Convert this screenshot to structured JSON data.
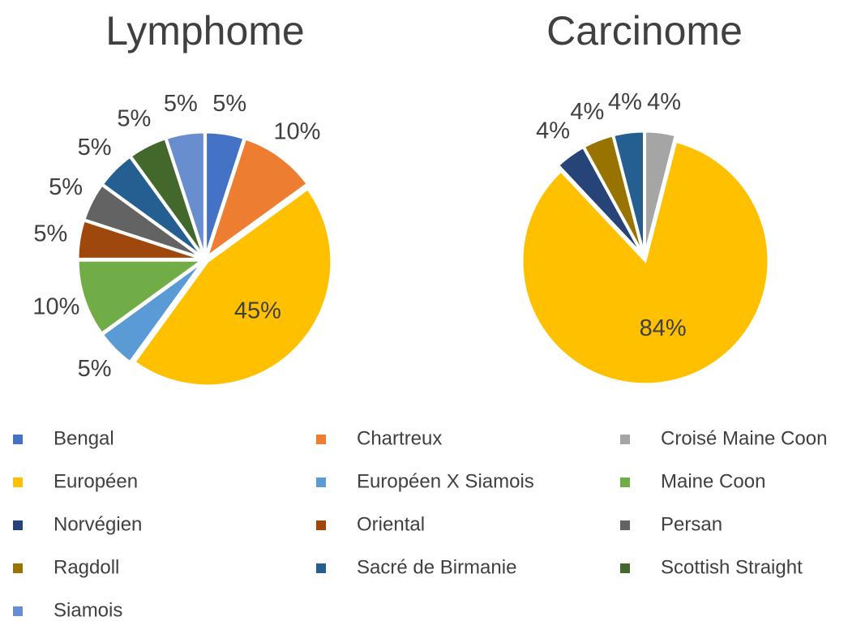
{
  "chart_data": [
    {
      "type": "pie",
      "title": "Lymphome",
      "categories": [
        "Bengal",
        "Chartreux",
        "Européen",
        "Européen X Siamois",
        "Maine Coon",
        "Oriental",
        "Persan",
        "Sacré de Birmanie",
        "Scottish Straight",
        "Siamois"
      ],
      "values": [
        5,
        10,
        45,
        5,
        10,
        5,
        5,
        5,
        5,
        5
      ],
      "value_labels": [
        "5%",
        "10%",
        "45%",
        "5%",
        "10%",
        "5%",
        "5%",
        "5%",
        "5%",
        "5%"
      ]
    },
    {
      "type": "pie",
      "title": "Carcinome",
      "categories": [
        "Croisé Maine Coon",
        "Européen",
        "Norvégien",
        "Ragdoll",
        "Sacré de Birmanie"
      ],
      "values": [
        4,
        84,
        4,
        4,
        4
      ],
      "value_labels": [
        "4%",
        "84%",
        "4%",
        "4%",
        "4%"
      ]
    }
  ],
  "legend": [
    {
      "name": "Bengal",
      "color": "#4472c4"
    },
    {
      "name": "Chartreux",
      "color": "#ed7d31"
    },
    {
      "name": "Croisé Maine Coon",
      "color": "#a5a5a5"
    },
    {
      "name": "Européen",
      "color": "#ffc000"
    },
    {
      "name": "Européen X Siamois",
      "color": "#5b9bd5"
    },
    {
      "name": "Maine Coon",
      "color": "#70ad47"
    },
    {
      "name": "Norvégien",
      "color": "#264478"
    },
    {
      "name": "Oriental",
      "color": "#9e480e"
    },
    {
      "name": "Persan",
      "color": "#636363"
    },
    {
      "name": "Ragdoll",
      "color": "#997300"
    },
    {
      "name": "Sacré de Birmanie",
      "color": "#255e91"
    },
    {
      "name": "Scottish Straight",
      "color": "#43682b"
    },
    {
      "name": "Siamois",
      "color": "#698ed0"
    }
  ]
}
